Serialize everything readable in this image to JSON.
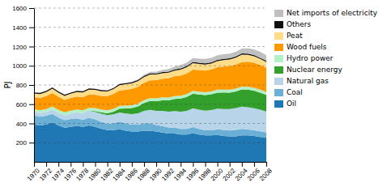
{
  "chart_data": {
    "type": "area",
    "stacked": true,
    "x": [
      1970,
      1971,
      1972,
      1973,
      1974,
      1975,
      1976,
      1977,
      1978,
      1979,
      1980,
      1981,
      1982,
      1983,
      1984,
      1985,
      1986,
      1987,
      1988,
      1989,
      1990,
      1991,
      1992,
      1993,
      1994,
      1995,
      1996,
      1997,
      1998,
      1999,
      2000,
      2001,
      2002,
      2003,
      2004,
      2005,
      2006,
      2007,
      2008
    ],
    "series": [
      {
        "name": "Oil",
        "color": "#1f78b4",
        "values": [
          390,
          380,
          390,
          410,
          380,
          355,
          365,
          375,
          365,
          380,
          365,
          345,
          330,
          330,
          340,
          325,
          315,
          315,
          325,
          325,
          315,
          305,
          295,
          295,
          285,
          285,
          300,
          285,
          275,
          275,
          280,
          270,
          265,
          265,
          275,
          275,
          270,
          260,
          255
        ]
      },
      {
        "name": "Coal",
        "color": "#6aafd6",
        "values": [
          95,
          90,
          90,
          88,
          82,
          78,
          82,
          78,
          73,
          78,
          78,
          72,
          68,
          72,
          78,
          78,
          72,
          72,
          78,
          78,
          68,
          68,
          62,
          62,
          58,
          58,
          62,
          58,
          53,
          53,
          58,
          62,
          62,
          68,
          68,
          62,
          58,
          58,
          52
        ]
      },
      {
        "name": "Natural gas",
        "color": "#b8d4e8",
        "values": [
          35,
          38,
          42,
          48,
          50,
          52,
          56,
          62,
          68,
          74,
          78,
          84,
          88,
          92,
          96,
          100,
          110,
          118,
          128,
          138,
          148,
          158,
          165,
          172,
          180,
          188,
          196,
          200,
          205,
          210,
          215,
          218,
          222,
          228,
          232,
          232,
          230,
          225,
          218
        ]
      },
      {
        "name": "Nuclear energy",
        "color": "#33a02c",
        "values": [
          0,
          0,
          0,
          0,
          0,
          0,
          0,
          0,
          0,
          0,
          8,
          14,
          20,
          28,
          40,
          52,
          62,
          72,
          82,
          92,
          100,
          110,
          118,
          126,
          135,
          144,
          152,
          158,
          162,
          165,
          168,
          172,
          172,
          172,
          178,
          183,
          183,
          178,
          172
        ]
      },
      {
        "name": "Hydro power",
        "color": "#b2f0c8",
        "values": [
          28,
          28,
          28,
          30,
          30,
          30,
          30,
          30,
          30,
          30,
          30,
          30,
          30,
          30,
          30,
          30,
          30,
          30,
          30,
          30,
          30,
          30,
          30,
          30,
          30,
          30,
          30,
          30,
          30,
          30,
          30,
          30,
          30,
          30,
          30,
          30,
          30,
          30,
          30
        ]
      },
      {
        "name": "Wood fuels",
        "color": "#ff9900",
        "values": [
          125,
          130,
          135,
          140,
          135,
          130,
          132,
          135,
          138,
          140,
          140,
          142,
          148,
          155,
          160,
          165,
          170,
          175,
          180,
          185,
          190,
          195,
          200,
          205,
          210,
          215,
          220,
          225,
          225,
          230,
          235,
          240,
          245,
          250,
          255,
          260,
          260,
          258,
          255
        ]
      },
      {
        "name": "Peat",
        "color": "#ffdd88",
        "values": [
          38,
          40,
          42,
          46,
          44,
          42,
          44,
          46,
          48,
          50,
          50,
          48,
          48,
          50,
          54,
          58,
          58,
          58,
          60,
          62,
          58,
          56,
          58,
          60,
          62,
          65,
          68,
          63,
          63,
          60,
          63,
          68,
          70,
          72,
          78,
          72,
          68,
          62,
          58
        ]
      },
      {
        "name": "Others",
        "color": "#111111",
        "values": [
          12,
          12,
          12,
          12,
          12,
          12,
          12,
          12,
          12,
          12,
          12,
          12,
          12,
          12,
          12,
          12,
          12,
          12,
          12,
          12,
          12,
          12,
          12,
          12,
          12,
          12,
          12,
          12,
          12,
          12,
          12,
          12,
          12,
          12,
          12,
          12,
          12,
          12,
          12
        ]
      },
      {
        "name": "Net imports of electricity",
        "color": "#c0c0c0",
        "values": [
          0,
          0,
          0,
          0,
          0,
          0,
          0,
          0,
          0,
          0,
          0,
          0,
          0,
          0,
          0,
          0,
          4,
          8,
          12,
          14,
          18,
          22,
          26,
          30,
          35,
          36,
          40,
          42,
          46,
          48,
          48,
          48,
          48,
          48,
          52,
          56,
          60,
          62,
          58
        ]
      }
    ],
    "y_label": "PJ",
    "xlim": [
      1970,
      2008
    ],
    "xticks": [
      1970,
      1972,
      1974,
      1976,
      1978,
      1980,
      1982,
      1984,
      1986,
      1988,
      1990,
      1992,
      1994,
      1996,
      1998,
      2000,
      2002,
      2004,
      2006,
      2008
    ],
    "ylim": [
      0,
      1600
    ],
    "yticks": [
      200,
      400,
      600,
      800,
      1000,
      1200,
      1400,
      1600
    ],
    "grid": true,
    "legend": "right"
  }
}
